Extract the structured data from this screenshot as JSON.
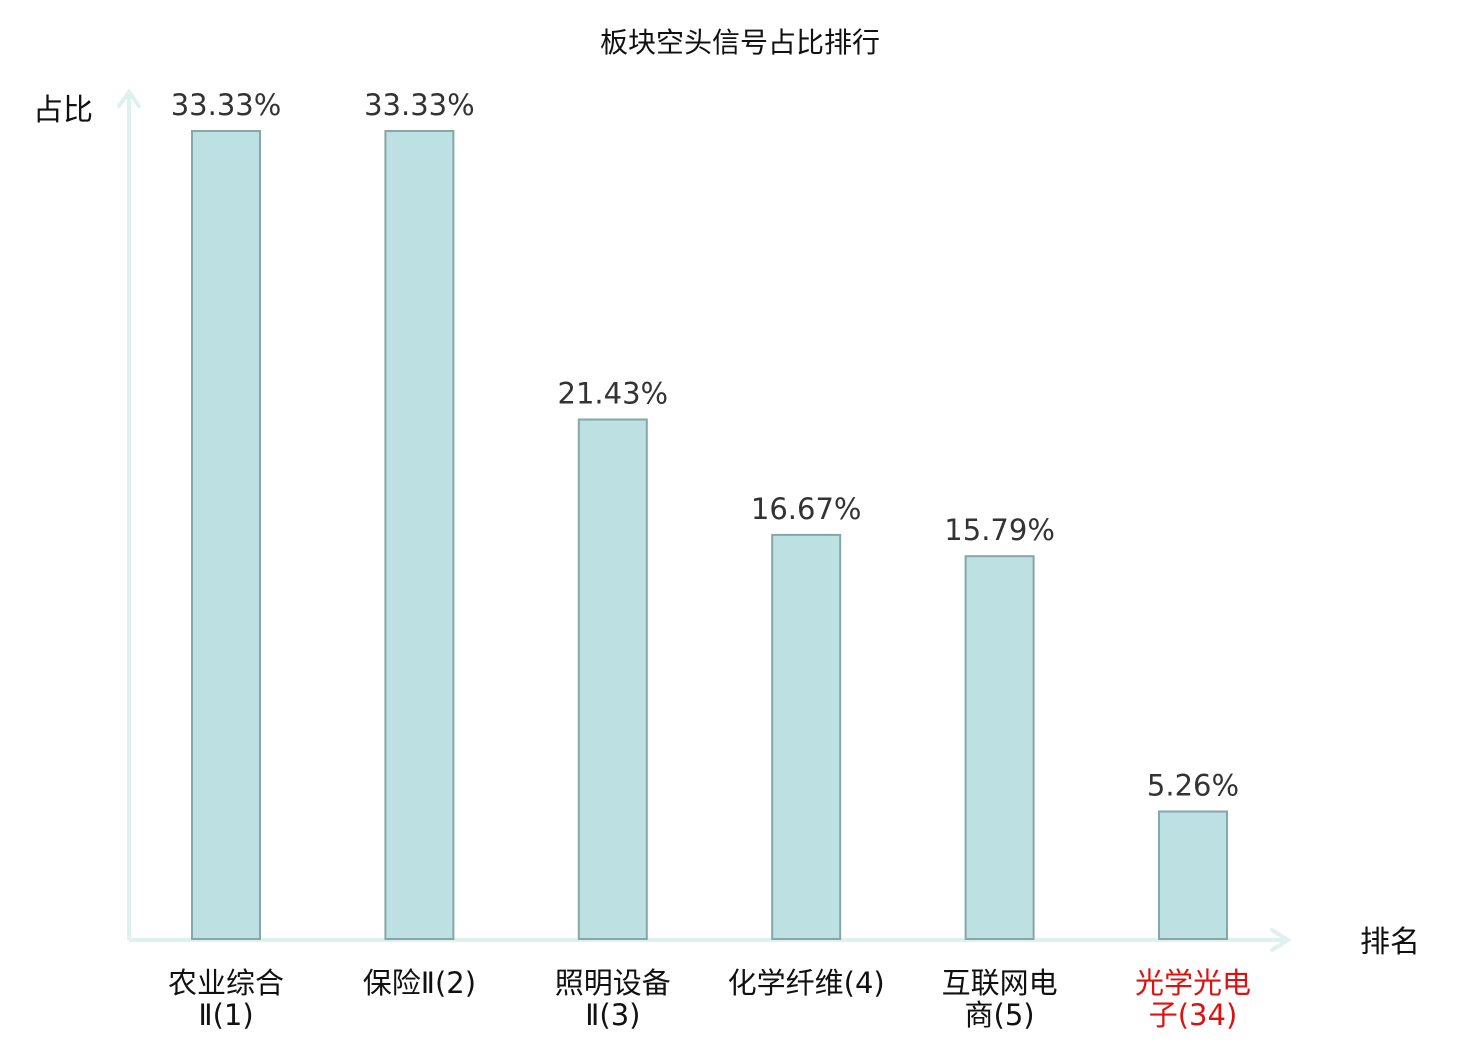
{
  "chart_data": {
    "type": "bar",
    "title": "板块空头信号占比排行",
    "ylabel": "占比",
    "xlabel": "排名",
    "ylim": [
      0,
      33.33
    ],
    "grid": false,
    "legend": "none",
    "categories": [
      [
        "农业综合",
        "Ⅱ(1)"
      ],
      [
        "保险Ⅱ(2)"
      ],
      [
        "照明设备",
        "Ⅱ(3)"
      ],
      [
        "化学纤维(4)"
      ],
      [
        "互联网电",
        "商(5)"
      ],
      [
        "光学光电",
        "子(34)"
      ]
    ],
    "values": [
      33.33,
      33.33,
      21.43,
      16.67,
      15.79,
      5.26
    ],
    "value_labels": [
      "33.33%",
      "33.33%",
      "21.43%",
      "16.67%",
      "15.79%",
      "5.26%"
    ],
    "highlight_index": 5
  },
  "colors": {
    "bar_fill": "#bde0e3",
    "bar_stroke": "#87a6a8",
    "axis": "#dff1ef",
    "text": "#111111",
    "value_text": "#333333",
    "highlight": "#e01010"
  }
}
